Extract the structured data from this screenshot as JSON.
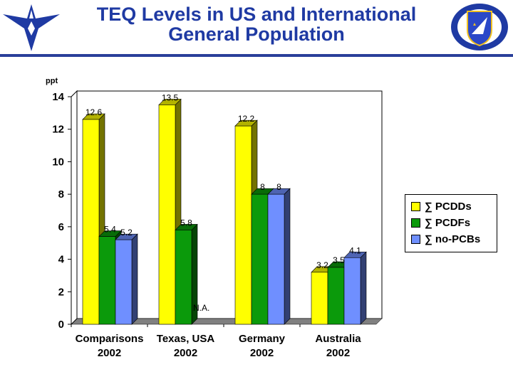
{
  "header": {
    "title_line1": "TEQ Levels in US and International",
    "title_line2": "General Population"
  },
  "colors": {
    "title": "#1f3aa3",
    "rule": "#2a3f9a",
    "series": [
      "#ffff00",
      "#0b9a0b",
      "#6f8fff"
    ]
  },
  "chart_data": {
    "type": "bar",
    "title": "TEQ Levels in US and International General Population",
    "ylabel": "ppt",
    "ylim": [
      0,
      14
    ],
    "yticks": [
      "0",
      "2",
      "4",
      "6",
      "8",
      "10",
      "12",
      "14"
    ],
    "categories": [
      [
        "Comparisons",
        "2002"
      ],
      [
        "Texas, USA",
        "2002"
      ],
      [
        "Germany",
        "2002"
      ],
      [
        "Australia",
        "2002"
      ]
    ],
    "series": [
      {
        "name": "∑ PCDDs",
        "values": [
          12.6,
          13.5,
          12.2,
          3.2
        ],
        "labels": [
          "12.6",
          "13.5",
          "12.2",
          "3.2"
        ]
      },
      {
        "name": "∑ PCDFs",
        "values": [
          5.4,
          5.8,
          8,
          3.5
        ],
        "labels": [
          "5.4",
          "5.8",
          "8",
          "3.5"
        ]
      },
      {
        "name": "∑ no-PCBs",
        "values": [
          5.2,
          null,
          8,
          4.1
        ],
        "labels": [
          "5.2",
          "N.A.",
          "8",
          "4.1"
        ]
      }
    ],
    "legend_position": "right",
    "style": "3d-bar"
  }
}
